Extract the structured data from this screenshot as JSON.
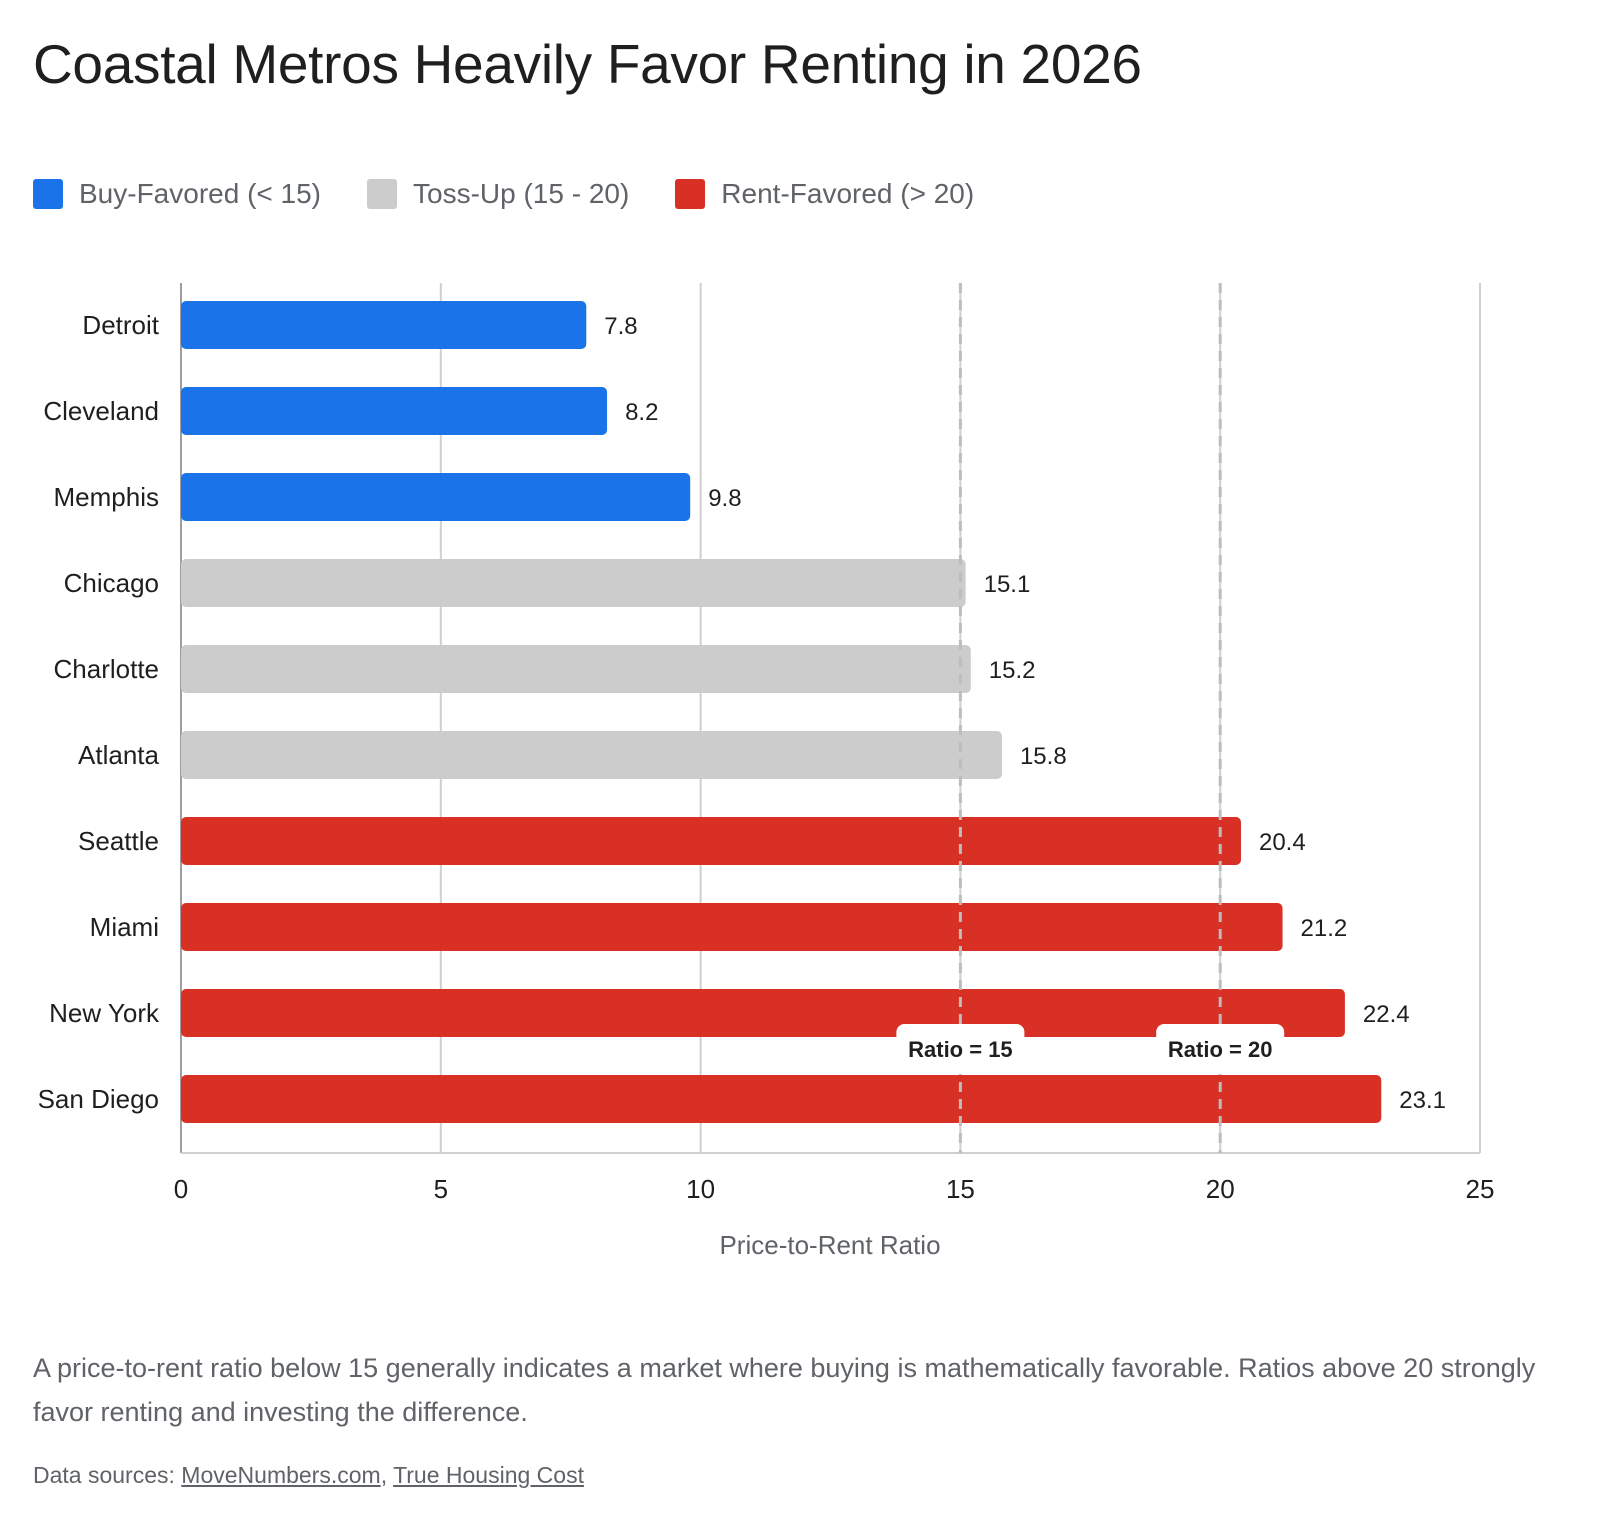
{
  "title": "Coastal Metros Heavily Favor Renting in 2026",
  "legend": [
    {
      "label": "Buy-Favored (< 15)",
      "color": "#1a73e8"
    },
    {
      "label": "Toss-Up (15 - 20)",
      "color": "#cccccc"
    },
    {
      "label": "Rent-Favored (> 20)",
      "color": "#d93025"
    }
  ],
  "chart_data": {
    "type": "bar",
    "orientation": "horizontal",
    "title": "Coastal Metros Heavily Favor Renting in 2026",
    "xlabel": "Price-to-Rent Ratio",
    "ylabel": "",
    "xlim": [
      0,
      25
    ],
    "x_ticks": [
      0,
      5,
      10,
      15,
      20,
      25
    ],
    "grid": true,
    "legend_position": "top-left",
    "categories": [
      "Detroit",
      "Cleveland",
      "Memphis",
      "Chicago",
      "Charlotte",
      "Atlanta",
      "Seattle",
      "Miami",
      "New York",
      "San Diego"
    ],
    "values": [
      7.8,
      8.2,
      9.8,
      15.1,
      15.2,
      15.8,
      20.4,
      21.2,
      22.4,
      23.1
    ],
    "value_labels": [
      "7.8",
      "8.2",
      "9.8",
      "15.1",
      "15.2",
      "15.8",
      "20.4",
      "21.2",
      "22.4",
      "23.1"
    ],
    "groups": [
      "Buy-Favored (< 15)",
      "Buy-Favored (< 15)",
      "Buy-Favored (< 15)",
      "Toss-Up (15 - 20)",
      "Toss-Up (15 - 20)",
      "Toss-Up (15 - 20)",
      "Rent-Favored (> 20)",
      "Rent-Favored (> 20)",
      "Rent-Favored (> 20)",
      "Rent-Favored (> 20)"
    ],
    "colors": [
      "#1a73e8",
      "#1a73e8",
      "#1a73e8",
      "#cccccc",
      "#cccccc",
      "#cccccc",
      "#d93025",
      "#d93025",
      "#d93025",
      "#d93025"
    ],
    "reference_lines": [
      {
        "value": 15,
        "label": "Ratio = 15"
      },
      {
        "value": 20,
        "label": "Ratio = 20"
      }
    ]
  },
  "note": "A price-to-rent ratio below 15 generally indicates a market where buying is mathematically favorable. Ratios above 20 strongly favor renting and investing the difference.",
  "sources": {
    "prefix": "Data sources: ",
    "links": [
      "MoveNumbers.com",
      "True Housing Cost"
    ],
    "separator": ", "
  }
}
